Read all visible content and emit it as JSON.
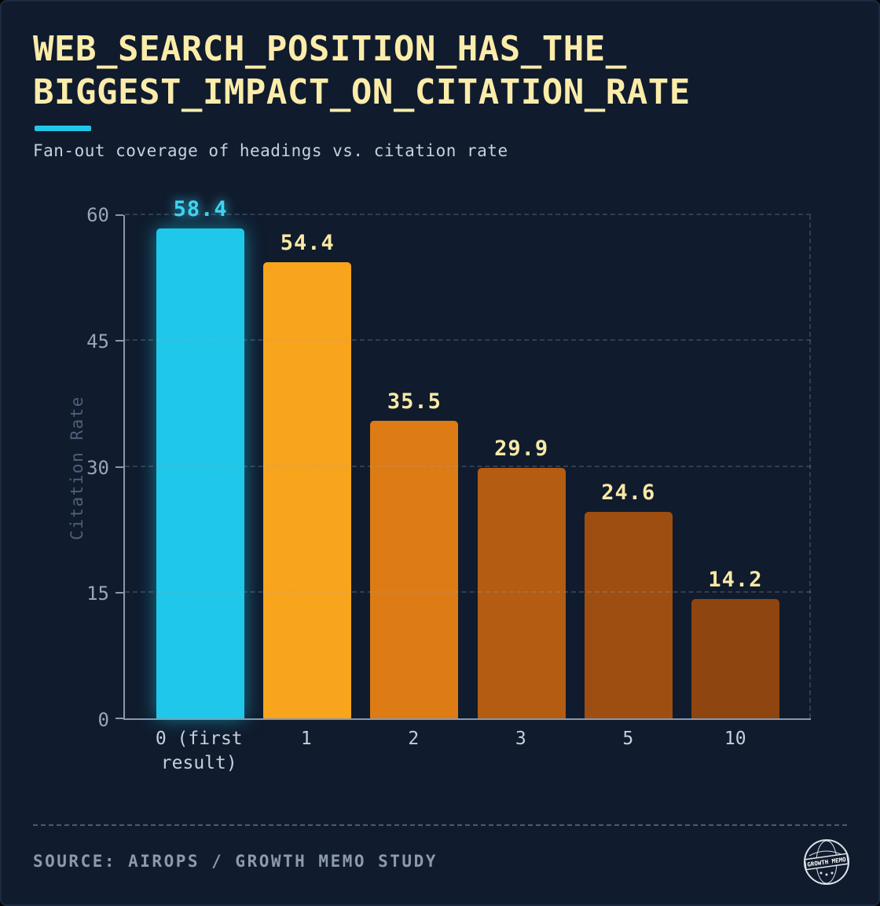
{
  "header": {
    "title_line1": "WEB_SEARCH_POSITION_HAS_THE_",
    "title_line2": "BIGGEST_IMPACT_ON_CITATION_RATE",
    "subtitle": "Fan-out coverage of headings vs. citation rate"
  },
  "chart_data": {
    "type": "bar",
    "title": "WEB_SEARCH_POSITION_HAS_THE_BIGGEST_IMPACT_ON_CITATION_RATE",
    "subtitle": "Fan-out coverage of headings vs. citation rate",
    "categories": [
      "0 (first\nresult)",
      "1",
      "2",
      "3",
      "5",
      "10"
    ],
    "values": [
      58.4,
      54.4,
      35.5,
      29.9,
      24.6,
      14.2
    ],
    "bar_colors": [
      "#1fc8ea",
      "#f8a41c",
      "#dd7b15",
      "#b35c12",
      "#9e4e10",
      "#8f450f"
    ],
    "highlight_index": 0,
    "xlabel": "",
    "ylabel": "Citation Rate",
    "yticks": [
      0,
      15,
      30,
      45,
      60
    ],
    "ylim": [
      0,
      60
    ],
    "grid": "horizontal-dashed",
    "legend": "none"
  },
  "footer": {
    "source": "SOURCE: AIROPS / GROWTH MEMO STUDY",
    "logo_text": "GROWTH MEMO"
  },
  "colors": {
    "background": "#101b2d",
    "title": "#fcecaa",
    "accent_cyan": "#1fc8ea",
    "value_label": "#fbe9a6",
    "highlight_value_label": "#3ed6f2",
    "axis": "#8b97ab",
    "tick_label": "#9aa5b8",
    "x_label": "#c6cfdb",
    "source": "#8d99ad"
  }
}
